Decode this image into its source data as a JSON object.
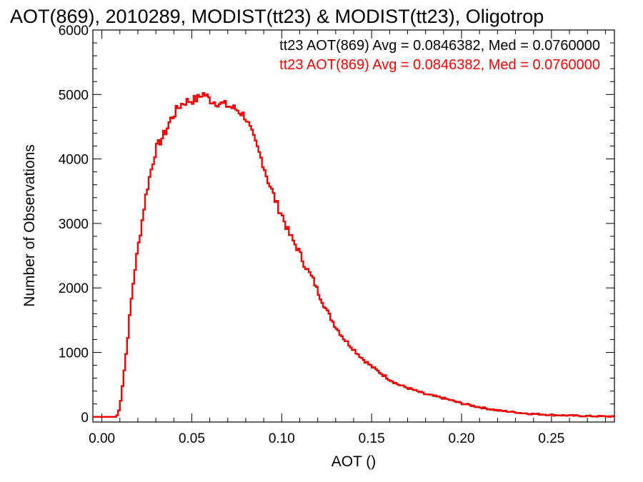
{
  "chart_data": {
    "type": "histogram-step",
    "title": "AOT(869), 2010289, MODIST(tt23) & MODIST(tt23), Oligotrop",
    "xlabel": "AOT ()",
    "ylabel": "Number of Observations",
    "xlim": [
      -0.005,
      0.285
    ],
    "ylim": [
      -80,
      6000
    ],
    "x_ticks": [
      0.0,
      0.05,
      0.1,
      0.15,
      0.2,
      0.25
    ],
    "x_tick_labels": [
      "0.00",
      "0.05",
      "0.10",
      "0.15",
      "0.20",
      "0.25"
    ],
    "y_ticks": [
      0,
      1000,
      2000,
      3000,
      4000,
      5000,
      6000
    ],
    "y_tick_labels": [
      "0",
      "1000",
      "2000",
      "3000",
      "4000",
      "5000",
      "6000"
    ],
    "bin_width": 0.001,
    "x": [
      -0.005,
      0.0,
      0.005,
      0.008,
      0.009,
      0.01,
      0.012,
      0.014,
      0.016,
      0.018,
      0.02,
      0.022,
      0.024,
      0.026,
      0.028,
      0.03,
      0.032,
      0.034,
      0.036,
      0.038,
      0.04,
      0.042,
      0.044,
      0.046,
      0.048,
      0.05,
      0.052,
      0.054,
      0.056,
      0.058,
      0.06,
      0.062,
      0.064,
      0.066,
      0.068,
      0.07,
      0.072,
      0.074,
      0.076,
      0.078,
      0.08,
      0.082,
      0.084,
      0.086,
      0.088,
      0.09,
      0.092,
      0.094,
      0.096,
      0.098,
      0.1,
      0.102,
      0.104,
      0.106,
      0.108,
      0.11,
      0.112,
      0.114,
      0.116,
      0.118,
      0.12,
      0.125,
      0.13,
      0.135,
      0.14,
      0.145,
      0.15,
      0.155,
      0.16,
      0.165,
      0.17,
      0.175,
      0.18,
      0.185,
      0.19,
      0.195,
      0.2,
      0.205,
      0.21,
      0.215,
      0.22,
      0.225,
      0.23,
      0.235,
      0.24,
      0.245,
      0.25,
      0.255,
      0.26,
      0.265,
      0.27,
      0.275,
      0.28,
      0.285
    ],
    "y": [
      0,
      0,
      0,
      0,
      50,
      150,
      600,
      1100,
      1700,
      2200,
      2600,
      2950,
      3350,
      3650,
      3900,
      4150,
      4250,
      4350,
      4450,
      4600,
      4680,
      4780,
      4840,
      4880,
      4900,
      4910,
      4920,
      4950,
      5020,
      4980,
      4920,
      4890,
      4880,
      4860,
      4840,
      4830,
      4800,
      4780,
      4750,
      4700,
      4650,
      4500,
      4350,
      4200,
      4050,
      3900,
      3700,
      3550,
      3400,
      3250,
      3150,
      3000,
      2850,
      2750,
      2650,
      2550,
      2400,
      2300,
      2200,
      2100,
      1950,
      1650,
      1400,
      1200,
      1050,
      900,
      780,
      680,
      580,
      500,
      450,
      400,
      350,
      320,
      290,
      250,
      210,
      180,
      150,
      125,
      100,
      85,
      70,
      55,
      45,
      38,
      30,
      25,
      20,
      16,
      12,
      10,
      8,
      5
    ],
    "series": [
      {
        "name": "tt23 AOT(869)",
        "color": "#000000"
      },
      {
        "name": "tt23 AOT(869)",
        "color": "#ff0000"
      }
    ],
    "legend": [
      {
        "text": "tt23 AOT(869) Avg = 0.0846382, Med = 0.0760000",
        "color": "#000000"
      },
      {
        "text": "tt23 AOT(869) Avg = 0.0846382, Med = 0.0760000",
        "color": "#ff0000"
      }
    ],
    "legend_position": "top-right",
    "grid": false
  }
}
